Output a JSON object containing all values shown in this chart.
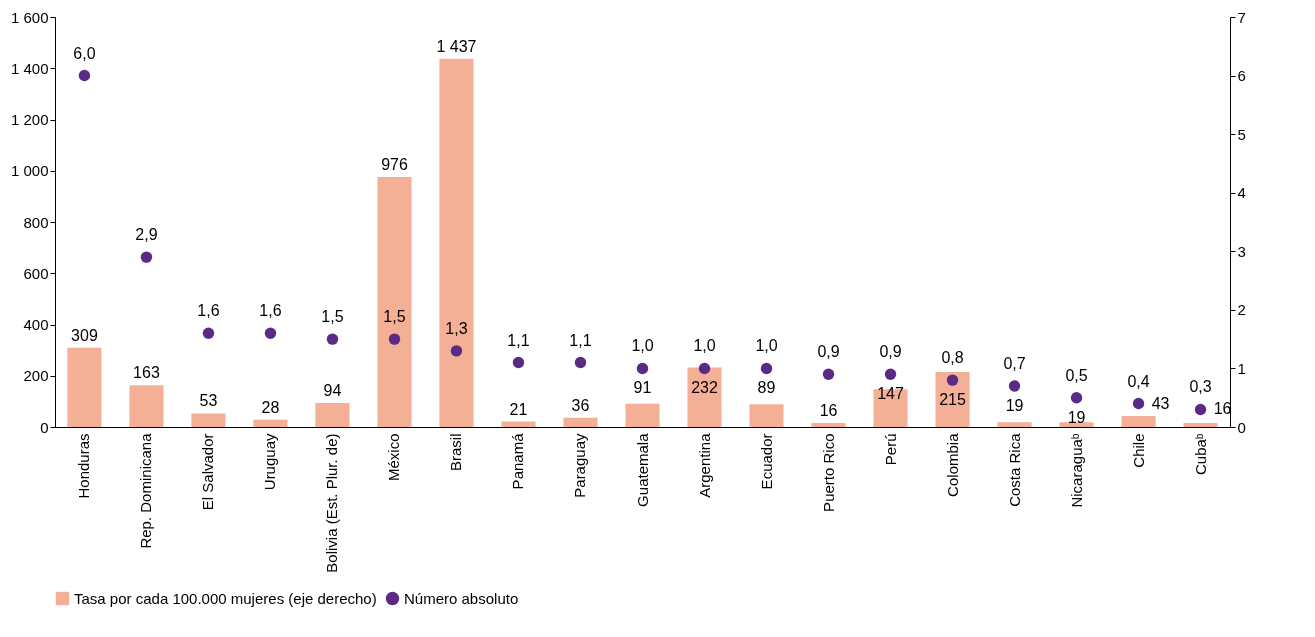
{
  "chart_data": {
    "type": "bar",
    "categories": [
      "Honduras",
      "Rep. Dominicana",
      "El Salvador",
      "Uruguay",
      "Bolivia (Est. Plur. de)",
      "México",
      "Brasil",
      "Panamá",
      "Paraguay",
      "Guatemala",
      "Argentina",
      "Ecuador",
      "Puerto Rico",
      "Perú",
      "Colombia",
      "Costa Rica",
      "Nicaraguaᵇ",
      "Chile",
      "Cubaᵇ"
    ],
    "series": [
      {
        "name": "Tasa por cada 100.000 mujeres (eje derecho)",
        "type": "bar",
        "color": "#f4b097",
        "values": [
          309,
          163,
          53,
          28,
          94,
          976,
          1437,
          21,
          36,
          91,
          232,
          89,
          16,
          147,
          215,
          19,
          19,
          43,
          16
        ],
        "value_labels": [
          "309",
          "163",
          "53",
          "28",
          "94",
          "976",
          "1 437",
          "21",
          "36",
          "91",
          "232",
          "89",
          "16",
          "147",
          "215",
          "19",
          "19",
          "43",
          "16"
        ]
      },
      {
        "name": "Número absoluto",
        "type": "scatter",
        "axis": "y2",
        "color": "#5b2a86",
        "values": [
          6.0,
          2.9,
          1.6,
          1.6,
          1.5,
          1.5,
          1.3,
          1.1,
          1.1,
          1.0,
          1.0,
          1.0,
          0.9,
          0.9,
          0.8,
          0.7,
          0.5,
          0.4,
          0.3
        ],
        "value_labels": [
          "6,0",
          "2,9",
          "1,6",
          "1,6",
          "1,5",
          "1,5",
          "1,3",
          "1,1",
          "1,1",
          "1,0",
          "1,0",
          "1,0",
          "0,9",
          "0,9",
          "0,8",
          "0,7",
          "0,5",
          "0,4",
          "0,3"
        ]
      }
    ],
    "ylim": [
      0,
      1600
    ],
    "yticks": [
      0,
      200,
      400,
      600,
      800,
      {
        "value": 1000,
        "label": "1 000"
      },
      {
        "value": 1200,
        "label": "1 200"
      },
      {
        "value": 1400,
        "label": "1 400"
      },
      {
        "value": 1600,
        "label": "1 600"
      }
    ],
    "y2lim": [
      0,
      7
    ],
    "y2ticks": [
      0,
      1,
      2,
      3,
      4,
      5,
      6,
      7
    ],
    "marker": "circle",
    "legend": "bottom",
    "grid": false
  }
}
